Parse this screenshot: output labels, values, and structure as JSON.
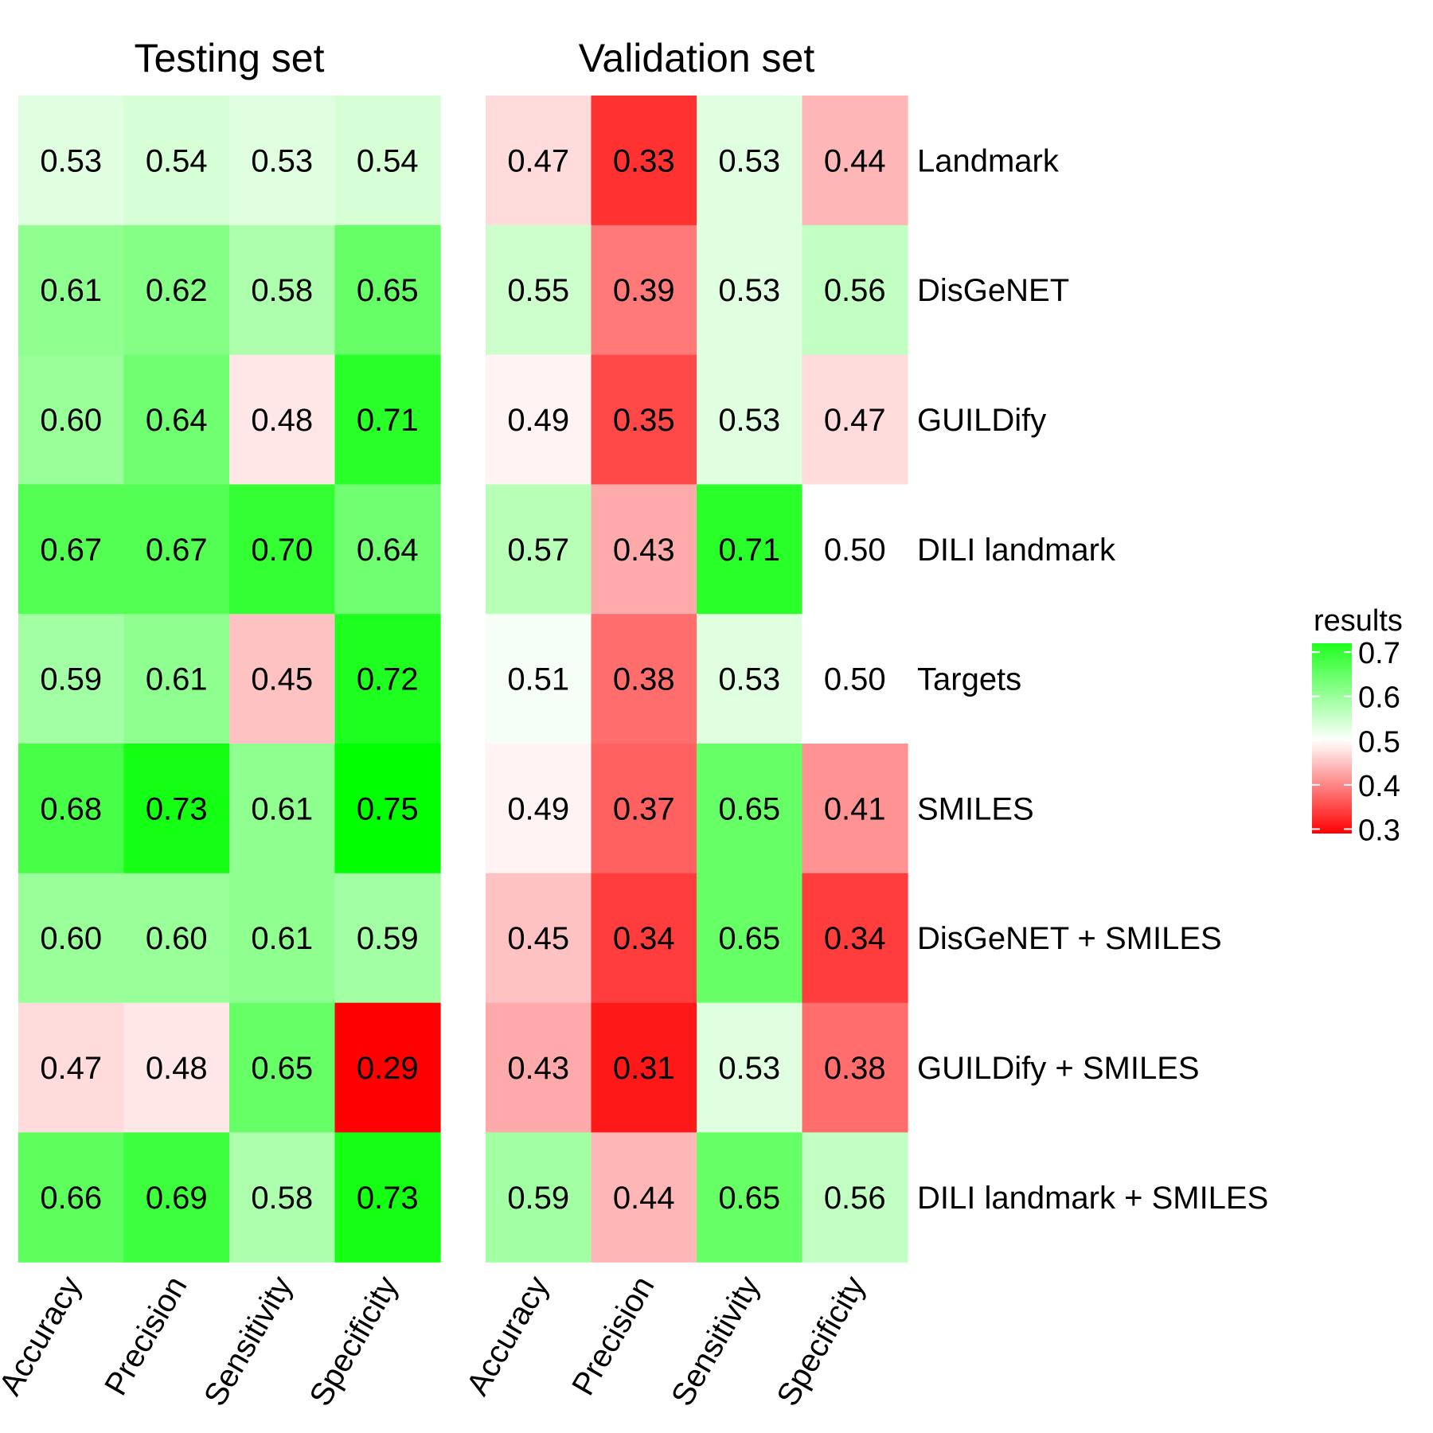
{
  "chart_data": {
    "type": "heatmap",
    "panels": [
      {
        "title": "Testing set",
        "columns": [
          "Accuracy",
          "Precision",
          "Sensitivity",
          "Specificity"
        ],
        "values": [
          [
            0.53,
            0.54,
            0.53,
            0.54
          ],
          [
            0.61,
            0.62,
            0.58,
            0.65
          ],
          [
            0.6,
            0.64,
            0.48,
            0.71
          ],
          [
            0.67,
            0.67,
            0.7,
            0.64
          ],
          [
            0.59,
            0.61,
            0.45,
            0.72
          ],
          [
            0.68,
            0.73,
            0.61,
            0.75
          ],
          [
            0.6,
            0.6,
            0.61,
            0.59
          ],
          [
            0.47,
            0.48,
            0.65,
            0.29
          ],
          [
            0.66,
            0.69,
            0.58,
            0.73
          ]
        ]
      },
      {
        "title": "Validation set",
        "columns": [
          "Accuracy",
          "Precision",
          "Sensitivity",
          "Specificity"
        ],
        "values": [
          [
            0.47,
            0.33,
            0.53,
            0.44
          ],
          [
            0.55,
            0.39,
            0.53,
            0.56
          ],
          [
            0.49,
            0.35,
            0.53,
            0.47
          ],
          [
            0.57,
            0.43,
            0.71,
            0.5
          ],
          [
            0.51,
            0.38,
            0.53,
            0.5
          ],
          [
            0.49,
            0.37,
            0.65,
            0.41
          ],
          [
            0.45,
            0.34,
            0.65,
            0.34
          ],
          [
            0.43,
            0.31,
            0.53,
            0.38
          ],
          [
            0.59,
            0.44,
            0.65,
            0.56
          ]
        ]
      }
    ],
    "rows": [
      "Landmark",
      "DisGeNET",
      "GUILDify",
      "DILI landmark",
      "Targets",
      "SMILES",
      "DisGeNET + SMILES",
      "GUILDify + SMILES",
      "DILI landmark + SMILES"
    ],
    "legend": {
      "title": "results",
      "ticks": [
        0.7,
        0.6,
        0.5,
        0.4,
        0.3
      ],
      "tick_labels": [
        "0.7",
        "0.6",
        "0.5",
        "0.4",
        "0.3"
      ],
      "placement": "right",
      "min": 0.29,
      "max": 0.75,
      "midpoint": 0.5
    },
    "colors": {
      "low": "#ff0000",
      "mid": "#ffffff",
      "high": "#00ff00"
    }
  }
}
